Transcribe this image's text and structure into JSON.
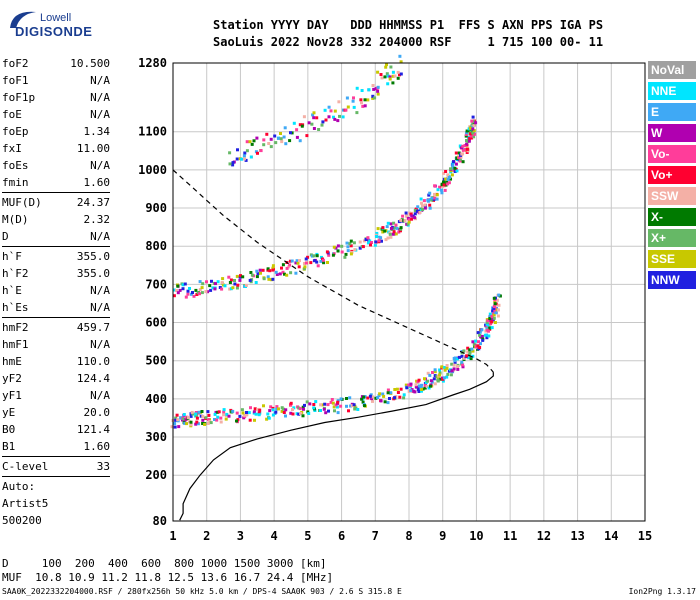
{
  "logo": {
    "top": "Lowell",
    "bottom": "DIGISONDE"
  },
  "header": {
    "line1": "Station YYYY DAY   DDD HHMMSS P1  FFS S AXN PPS IGA PS",
    "line2": "SaoLuis 2022 Nov28 332 204000 RSF     1 715 100 00- 11"
  },
  "params_group1": [
    {
      "name": "foF2",
      "value": "10.500"
    },
    {
      "name": "foF1",
      "value": "N/A"
    },
    {
      "name": "foF1p",
      "value": "N/A"
    },
    {
      "name": "foE",
      "value": "N/A"
    },
    {
      "name": "foEp",
      "value": "1.34"
    },
    {
      "name": "fxI",
      "value": "11.00"
    },
    {
      "name": "foEs",
      "value": "N/A"
    },
    {
      "name": "fmin",
      "value": "1.60"
    }
  ],
  "params_group2": [
    {
      "name": "MUF(D)",
      "value": "24.37"
    },
    {
      "name": "M(D)",
      "value": "2.32"
    },
    {
      "name": "D",
      "value": "N/A"
    }
  ],
  "params_group3": [
    {
      "name": "h`F",
      "value": "355.0"
    },
    {
      "name": "h`F2",
      "value": "355.0"
    },
    {
      "name": "h`E",
      "value": "N/A"
    },
    {
      "name": "h`Es",
      "value": "N/A"
    }
  ],
  "params_group4": [
    {
      "name": "hmF2",
      "value": "459.7"
    },
    {
      "name": "hmF1",
      "value": "N/A"
    },
    {
      "name": "hmE",
      "value": "110.0"
    },
    {
      "name": "yF2",
      "value": "124.4"
    },
    {
      "name": "yF1",
      "value": "N/A"
    },
    {
      "name": "yE",
      "value": "20.0"
    },
    {
      "name": "B0",
      "value": "121.4"
    },
    {
      "name": "B1",
      "value": "1.60"
    }
  ],
  "clevel": {
    "name": "C-level",
    "value": "33"
  },
  "auto": {
    "line1": "Auto:",
    "line2": "Artist5",
    "line3": "500200"
  },
  "legend": [
    {
      "label": "NoVal",
      "color": "#a0a0a0"
    },
    {
      "label": "NNE",
      "color": "#00e5ff"
    },
    {
      "label": "E",
      "color": "#3fa9f5"
    },
    {
      "label": "W",
      "color": "#b000b0"
    },
    {
      "label": "Vo-",
      "color": "#ff3d9a"
    },
    {
      "label": "Vo+",
      "color": "#ff0030"
    },
    {
      "label": "SSW",
      "color": "#f4b0a6"
    },
    {
      "label": "X-",
      "color": "#007a00"
    },
    {
      "label": "X+",
      "color": "#66b866"
    },
    {
      "label": "SSE",
      "color": "#c8c800"
    },
    {
      "label": "NNW",
      "color": "#2020e0"
    }
  ],
  "footer": {
    "d_line": "D     100  200  400  600  800 1000 1500 3000 [km]",
    "muf_line": "MUF  10.8 10.9 11.2 11.8 12.5 13.6 16.7 24.4 [MHz]",
    "file_line": "SAA0K_2022332204000.RSF / 280fx256h 50 kHz 5.0 km / DPS-4 SAA0K 903 / 2.6 S 315.8 E",
    "version": "Ion2Png 1.3.17"
  },
  "chart_data": {
    "type": "scatter",
    "x_range": [
      1,
      15
    ],
    "y_range": [
      80,
      1280
    ],
    "x_ticks": [
      "1",
      "2",
      "3",
      "4",
      "5",
      "6",
      "7",
      "8",
      "9",
      "10",
      "11",
      "12",
      "13",
      "14",
      "15"
    ],
    "y_ticks": [
      {
        "label": "80",
        "value": 80
      },
      {
        "label": "200",
        "value": 200
      },
      {
        "label": "300",
        "value": 300
      },
      {
        "label": "400",
        "value": 400
      },
      {
        "label": "500",
        "value": 500
      },
      {
        "label": "600",
        "value": 600
      },
      {
        "label": "700",
        "value": 700
      },
      {
        "label": "800",
        "value": 800
      },
      {
        "label": "900",
        "value": 900
      },
      {
        "label": "1000",
        "value": 1000
      },
      {
        "label": "1100",
        "value": 1100
      },
      {
        "label": "1280",
        "value": 1280
      }
    ],
    "grid": true,
    "traces": {
      "o_trace_1": [
        [
          1.0,
          345
        ],
        [
          1.5,
          350
        ],
        [
          2,
          355
        ],
        [
          3,
          362
        ],
        [
          4,
          370
        ],
        [
          5,
          378
        ],
        [
          6,
          388
        ],
        [
          7,
          402
        ],
        [
          8,
          428
        ],
        [
          8.5,
          448
        ],
        [
          9,
          472
        ],
        [
          9.5,
          505
        ],
        [
          10,
          548
        ],
        [
          10.3,
          590
        ],
        [
          10.5,
          630
        ],
        [
          10.6,
          665
        ]
      ],
      "o_trace_2": [
        [
          1.0,
          685
        ],
        [
          2,
          695
        ],
        [
          3,
          712
        ],
        [
          4,
          735
        ],
        [
          5,
          760
        ],
        [
          6,
          790
        ],
        [
          7,
          828
        ],
        [
          7.5,
          850
        ],
        [
          8,
          880
        ],
        [
          8.5,
          920
        ],
        [
          9,
          970
        ],
        [
          9.3,
          1010
        ],
        [
          9.6,
          1060
        ],
        [
          9.8,
          1100
        ],
        [
          9.9,
          1130
        ]
      ],
      "o_trace_3": [
        [
          2.7,
          1040
        ],
        [
          3.5,
          1065
        ],
        [
          4.5,
          1100
        ],
        [
          5.5,
          1140
        ],
        [
          6.5,
          1190
        ],
        [
          7.2,
          1240
        ],
        [
          7.8,
          1280
        ]
      ]
    },
    "true_height_profile": [
      [
        1.2,
        82
      ],
      [
        1.3,
        100
      ],
      [
        1.3,
        125
      ],
      [
        1.5,
        165
      ],
      [
        1.8,
        200
      ],
      [
        2.2,
        240
      ],
      [
        2.7,
        272
      ],
      [
        3.5,
        295
      ],
      [
        4.5,
        318
      ],
      [
        5.5,
        338
      ],
      [
        6.5,
        352
      ],
      [
        7.5,
        368
      ],
      [
        8.5,
        385
      ],
      [
        9.3,
        410
      ],
      [
        9.8,
        425
      ],
      [
        10.3,
        445
      ],
      [
        10.5,
        460
      ],
      [
        10.5,
        470
      ]
    ],
    "density_model_dashed": [
      [
        1.0,
        1000
      ],
      [
        1.5,
        960
      ],
      [
        2,
        920
      ],
      [
        2.5,
        880
      ],
      [
        3,
        845
      ],
      [
        3.5,
        810
      ],
      [
        4,
        780
      ],
      [
        4.5,
        750
      ],
      [
        5,
        720
      ],
      [
        5.5,
        695
      ],
      [
        6,
        670
      ],
      [
        6.5,
        645
      ],
      [
        7,
        625
      ],
      [
        7.5,
        605
      ],
      [
        8,
        585
      ],
      [
        8.5,
        565
      ],
      [
        9,
        545
      ],
      [
        9.5,
        525
      ],
      [
        10,
        505
      ],
      [
        10.3,
        490
      ],
      [
        10.5,
        470
      ]
    ]
  }
}
